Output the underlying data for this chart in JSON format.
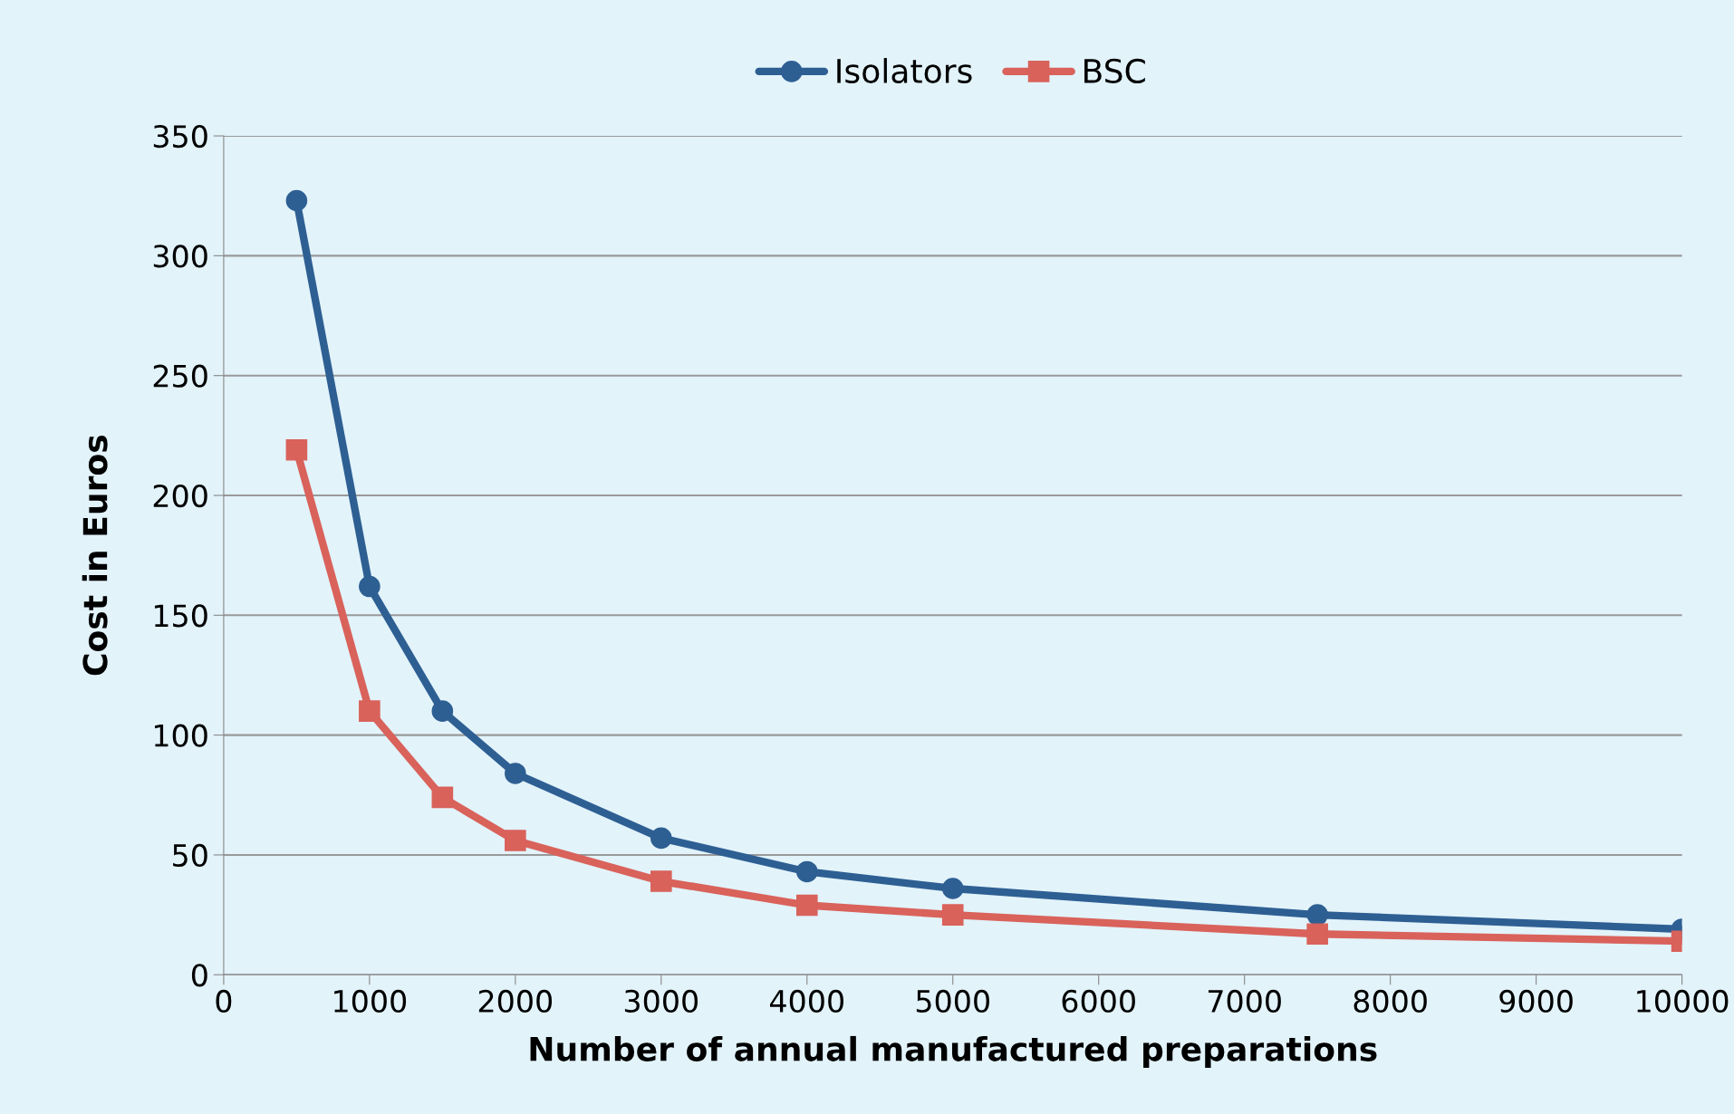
{
  "chart_data": {
    "type": "line",
    "xlabel": "Number of annual manufactured preparations",
    "ylabel": "Cost in Euros",
    "x": [
      500,
      1000,
      1500,
      2000,
      3000,
      4000,
      5000,
      7500,
      10000
    ],
    "series": [
      {
        "name": "Isolators",
        "color": "#2e5f93",
        "marker": "circle",
        "values": [
          323,
          162,
          110,
          84,
          57,
          43,
          36,
          25,
          19
        ]
      },
      {
        "name": "BSC",
        "color": "#d9625b",
        "marker": "square",
        "values": [
          219,
          110,
          74,
          56,
          39,
          29,
          25,
          17,
          14
        ]
      }
    ],
    "xlim": [
      0,
      10000
    ],
    "xticks": [
      0,
      1000,
      2000,
      3000,
      4000,
      5000,
      6000,
      7000,
      8000,
      9000,
      10000
    ],
    "ylim": [
      0,
      350
    ],
    "yticks": [
      0,
      50,
      100,
      150,
      200,
      250,
      300,
      350
    ],
    "grid": "y",
    "legend": "top",
    "line_style": "solid"
  }
}
